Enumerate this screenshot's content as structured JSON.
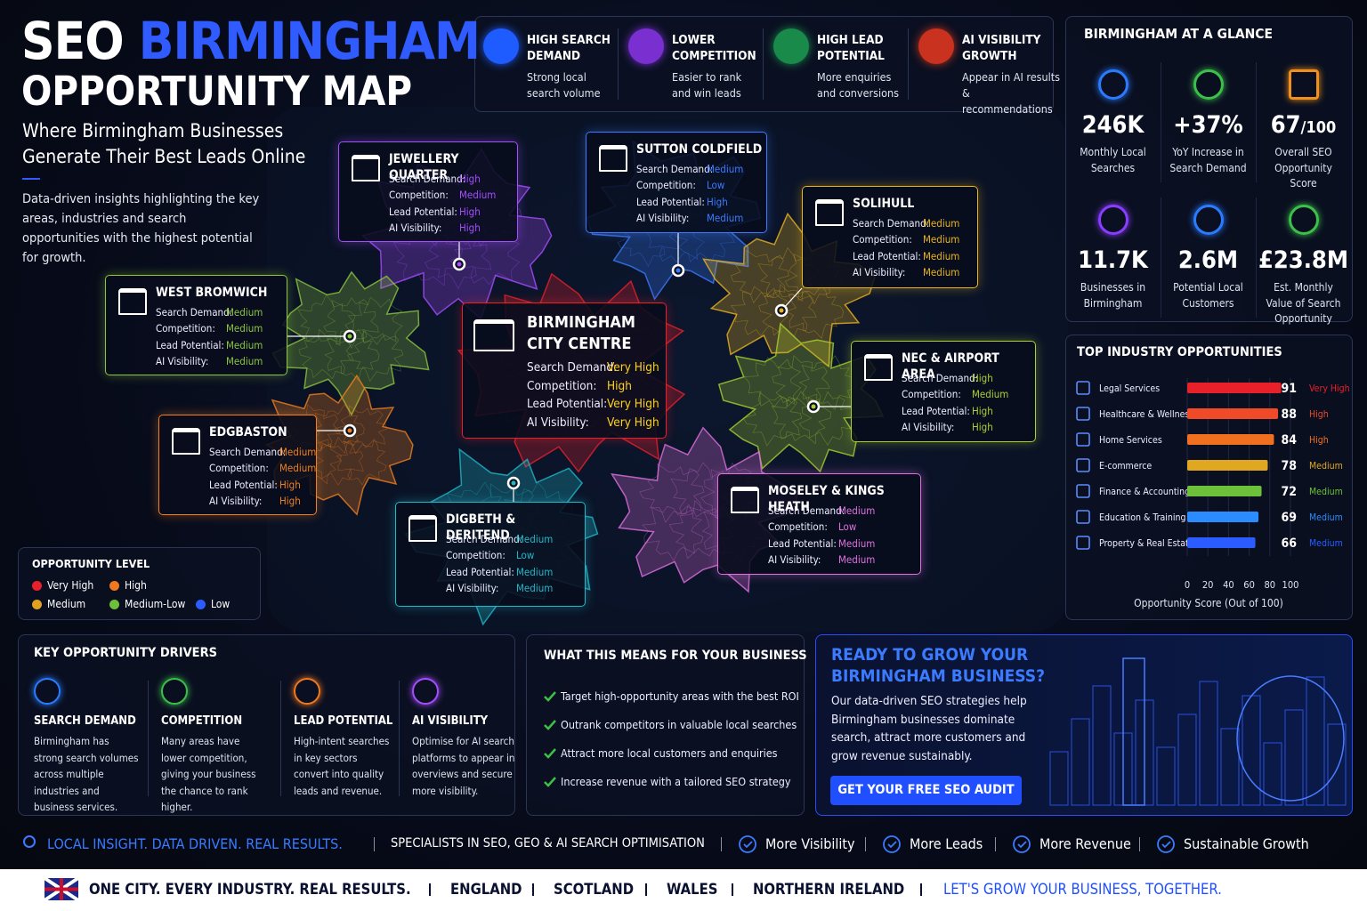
{
  "header": {
    "title_seo": "SEO",
    "title_city": "BIRMINGHAM",
    "title_map": "OPPORTUNITY MAP",
    "subtitle": "Where Birmingham Businesses Generate Their Best Leads Online",
    "intro": "Data-driven insights highlighting the key areas, industries and search opportunities with the highest potential for growth."
  },
  "features": [
    {
      "title": "HIGH SEARCH DEMAND",
      "text": "Strong local search volume"
    },
    {
      "title": "LOWER COMPETITION",
      "text": "Easier to rank and win leads"
    },
    {
      "title": "HIGH LEAD POTENTIAL",
      "text": "More enquiries and conversions"
    },
    {
      "title": "AI VISIBILITY GROWTH",
      "text": "Appear in AI results & recommendations"
    }
  ],
  "areas": [
    {
      "name": "JEWELLERY QUARTER",
      "color": "#a64dff",
      "rows": [
        {
          "label": "Search Demand:",
          "value": "High"
        },
        {
          "label": "Competition:",
          "value": "Medium"
        },
        {
          "label": "Lead Potential:",
          "value": "High"
        },
        {
          "label": "AI Visibility:",
          "value": "High"
        }
      ]
    },
    {
      "name": "SUTTON COLDFIELD",
      "color": "#3b7bff",
      "rows": [
        {
          "label": "Search Demand:",
          "value": "Medium"
        },
        {
          "label": "Competition:",
          "value": "Low"
        },
        {
          "label": "Lead Potential:",
          "value": "High"
        },
        {
          "label": "AI Visibility:",
          "value": "Medium"
        }
      ]
    },
    {
      "name": "SOLIHULL",
      "color": "#e8b420",
      "rows": [
        {
          "label": "Search Demand:",
          "value": "Medium"
        },
        {
          "label": "Competition:",
          "value": "Medium"
        },
        {
          "label": "Lead Potential:",
          "value": "Medium"
        },
        {
          "label": "AI Visibility:",
          "value": "Medium"
        }
      ]
    },
    {
      "name": "WEST BROMWICH",
      "color": "#8cc63f",
      "rows": [
        {
          "label": "Search Demand:",
          "value": "Medium"
        },
        {
          "label": "Competition:",
          "value": "Medium"
        },
        {
          "label": "Lead Potential:",
          "value": "Medium"
        },
        {
          "label": "AI Visibility:",
          "value": "Medium"
        }
      ]
    },
    {
      "name": "BIRMINGHAM CITY CENTRE",
      "color": "#e8202a",
      "rows": [
        {
          "label": "Search Demand:",
          "value": "Very High"
        },
        {
          "label": "Competition:",
          "value": "High"
        },
        {
          "label": "Lead Potential:",
          "value": "Very High"
        },
        {
          "label": "AI Visibility:",
          "value": "Very High"
        }
      ]
    },
    {
      "name": "NEC & AIRPORT AREA",
      "color": "#a8d030",
      "rows": [
        {
          "label": "Search Demand:",
          "value": "High"
        },
        {
          "label": "Competition:",
          "value": "Medium"
        },
        {
          "label": "Lead Potential:",
          "value": "High"
        },
        {
          "label": "AI Visibility:",
          "value": "High"
        }
      ]
    },
    {
      "name": "EDGBASTON",
      "color": "#f08020",
      "rows": [
        {
          "label": "Search Demand:",
          "value": "Medium"
        },
        {
          "label": "Competition:",
          "value": "Medium"
        },
        {
          "label": "Lead Potential:",
          "value": "High"
        },
        {
          "label": "AI Visibility:",
          "value": "High"
        }
      ]
    },
    {
      "name": "DIGBETH & DERITEND",
      "color": "#20b8c8",
      "rows": [
        {
          "label": "Search Demand:",
          "value": "Medium"
        },
        {
          "label": "Competition:",
          "value": "Low"
        },
        {
          "label": "Lead Potential:",
          "value": "Medium"
        },
        {
          "label": "AI Visibility:",
          "value": "Medium"
        }
      ]
    },
    {
      "name": "MOSELEY & KINGS HEATH",
      "color": "#e070e0",
      "rows": [
        {
          "label": "Search Demand:",
          "value": "Medium"
        },
        {
          "label": "Competition:",
          "value": "Low"
        },
        {
          "label": "Lead Potential:",
          "value": "Medium"
        },
        {
          "label": "AI Visibility:",
          "value": "Medium"
        }
      ]
    }
  ],
  "legend": {
    "title": "OPPORTUNITY LEVEL",
    "items": [
      {
        "label": "Very High",
        "color": "#e8202a"
      },
      {
        "label": "High",
        "color": "#f07820"
      },
      {
        "label": "Medium",
        "color": "#e0a020"
      },
      {
        "label": "Medium-Low",
        "color": "#6cc03a"
      },
      {
        "label": "Low",
        "color": "#2a5cff"
      }
    ]
  },
  "glance": {
    "title": "BIRMINGHAM AT A GLANCE",
    "stats": [
      {
        "value": "246K",
        "label": "Monthly Local Searches"
      },
      {
        "value": "+37%",
        "label": "YoY Increase in Search Demand"
      },
      {
        "value": "67",
        "suffix": "/100",
        "label": "Overall SEO Opportunity Score"
      },
      {
        "value": "11.7K",
        "label": "Businesses in Birmingham"
      },
      {
        "value": "2.6M",
        "label": "Potential Local Customers"
      },
      {
        "value": "£23.8M",
        "label": "Est. Monthly Value of Search Opportunity"
      }
    ]
  },
  "chart_data": {
    "type": "bar",
    "title": "TOP INDUSTRY OPPORTUNITIES",
    "categories": [
      "Legal Services",
      "Healthcare & Wellness",
      "Home Services",
      "E-commerce",
      "Finance & Accounting",
      "Education & Training",
      "Property & Real Estate"
    ],
    "values": [
      91,
      88,
      84,
      78,
      72,
      69,
      66
    ],
    "levels": [
      "Very High",
      "High",
      "High",
      "Medium",
      "Medium",
      "Medium",
      "Medium"
    ],
    "colors": [
      "#e8202a",
      "#f04a28",
      "#f07020",
      "#e0a820",
      "#6cc03a",
      "#2a8cff",
      "#2a5cff"
    ],
    "xlim": [
      0,
      100
    ],
    "xticks": [
      0,
      20,
      40,
      60,
      80,
      100
    ],
    "xlabel": "Opportunity Score (Out of 100)"
  },
  "drivers": {
    "title": "KEY OPPORTUNITY DRIVERS",
    "items": [
      {
        "title": "SEARCH DEMAND",
        "text": "Birmingham has strong search volumes across multiple industries and business services."
      },
      {
        "title": "COMPETITION",
        "text": "Many areas have lower competition, giving your business the chance to rank higher."
      },
      {
        "title": "LEAD POTENTIAL",
        "text": "High-intent searches in key sectors convert into quality leads and revenue."
      },
      {
        "title": "AI VISIBILITY",
        "text": "Optimise for AI search platforms to appear in overviews and secure more visibility."
      }
    ]
  },
  "means": {
    "title": "WHAT THIS MEANS FOR YOUR BUSINESS",
    "items": [
      "Target high-opportunity areas with the best ROI",
      "Outrank competitors in valuable local searches",
      "Attract more local customers and enquiries",
      "Increase revenue with a tailored SEO strategy"
    ]
  },
  "cta": {
    "title": "READY TO GROW YOUR BIRMINGHAM BUSINESS?",
    "text": "Our data-driven SEO strategies help Birmingham businesses dominate search, attract more customers and grow revenue sustainably.",
    "button": "GET YOUR FREE SEO AUDIT"
  },
  "footer": {
    "tagline": "LOCAL INSIGHT. DATA DRIVEN. REAL RESULTS.",
    "specialists": "SPECIALISTS IN SEO, GEO & AI SEARCH OPTIMISATION",
    "benefits": [
      "More Visibility",
      "More Leads",
      "More Revenue",
      "Sustainable Growth"
    ]
  },
  "bottom": {
    "slogan": "ONE CITY. EVERY INDUSTRY. REAL RESULTS.",
    "regions": [
      "ENGLAND",
      "SCOTLAND",
      "WALES",
      "NORTHERN IRELAND"
    ],
    "closing": "LET'S GROW YOUR BUSINESS, TOGETHER."
  }
}
